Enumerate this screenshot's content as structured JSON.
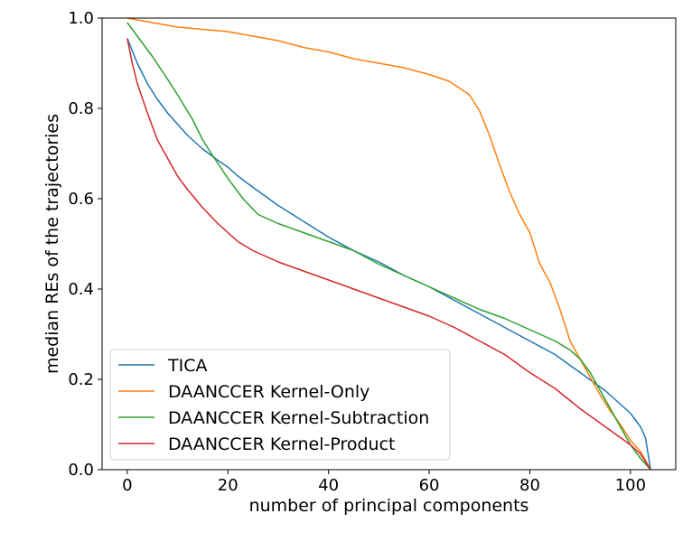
{
  "chart_data": {
    "type": "line",
    "title": "",
    "xlabel": "number of principal components",
    "ylabel": "median REs of the trajectories",
    "xlim": [
      -5,
      109
    ],
    "ylim": [
      0.0,
      1.0
    ],
    "xticks": [
      0,
      20,
      40,
      60,
      80,
      100
    ],
    "xtick_labels": [
      "0",
      "20",
      "40",
      "60",
      "80",
      "100"
    ],
    "yticks": [
      0.0,
      0.2,
      0.4,
      0.6,
      0.8,
      1.0
    ],
    "ytick_labels": [
      "0.0",
      "0.2",
      "0.4",
      "0.6",
      "0.8",
      "1.0"
    ],
    "grid": false,
    "legend_position": "lower-left",
    "series": [
      {
        "name": "TICA",
        "color": "#1f77b4",
        "points": [
          [
            0,
            0.955
          ],
          [
            2,
            0.9
          ],
          [
            4,
            0.855
          ],
          [
            6,
            0.82
          ],
          [
            8,
            0.79
          ],
          [
            10,
            0.765
          ],
          [
            12,
            0.74
          ],
          [
            15,
            0.71
          ],
          [
            18,
            0.685
          ],
          [
            20,
            0.67
          ],
          [
            22,
            0.65
          ],
          [
            25,
            0.625
          ],
          [
            30,
            0.585
          ],
          [
            35,
            0.55
          ],
          [
            40,
            0.515
          ],
          [
            45,
            0.485
          ],
          [
            50,
            0.46
          ],
          [
            55,
            0.43
          ],
          [
            60,
            0.405
          ],
          [
            65,
            0.375
          ],
          [
            70,
            0.345
          ],
          [
            75,
            0.315
          ],
          [
            80,
            0.285
          ],
          [
            85,
            0.255
          ],
          [
            90,
            0.215
          ],
          [
            95,
            0.175
          ],
          [
            98,
            0.145
          ],
          [
            100,
            0.125
          ],
          [
            102,
            0.095
          ],
          [
            103,
            0.07
          ],
          [
            104,
            0.0
          ]
        ]
      },
      {
        "name": "DAANCCER Kernel-Only",
        "color": "#ff7f0e",
        "points": [
          [
            0,
            1.0
          ],
          [
            5,
            0.99
          ],
          [
            10,
            0.98
          ],
          [
            15,
            0.975
          ],
          [
            20,
            0.97
          ],
          [
            25,
            0.96
          ],
          [
            30,
            0.95
          ],
          [
            35,
            0.935
          ],
          [
            40,
            0.925
          ],
          [
            45,
            0.91
          ],
          [
            50,
            0.9
          ],
          [
            55,
            0.89
          ],
          [
            60,
            0.875
          ],
          [
            64,
            0.86
          ],
          [
            66,
            0.845
          ],
          [
            68,
            0.83
          ],
          [
            70,
            0.795
          ],
          [
            72,
            0.74
          ],
          [
            74,
            0.675
          ],
          [
            76,
            0.615
          ],
          [
            78,
            0.565
          ],
          [
            80,
            0.525
          ],
          [
            82,
            0.455
          ],
          [
            84,
            0.415
          ],
          [
            86,
            0.355
          ],
          [
            88,
            0.285
          ],
          [
            90,
            0.245
          ],
          [
            92,
            0.205
          ],
          [
            94,
            0.165
          ],
          [
            96,
            0.13
          ],
          [
            98,
            0.1
          ],
          [
            100,
            0.065
          ],
          [
            102,
            0.04
          ],
          [
            104,
            0.0
          ]
        ]
      },
      {
        "name": "DAANCCER Kernel-Subtraction",
        "color": "#2ca02c",
        "points": [
          [
            0,
            0.99
          ],
          [
            2,
            0.96
          ],
          [
            5,
            0.915
          ],
          [
            8,
            0.865
          ],
          [
            10,
            0.83
          ],
          [
            13,
            0.775
          ],
          [
            15,
            0.73
          ],
          [
            17,
            0.695
          ],
          [
            20,
            0.645
          ],
          [
            23,
            0.6
          ],
          [
            26,
            0.565
          ],
          [
            30,
            0.545
          ],
          [
            35,
            0.525
          ],
          [
            40,
            0.505
          ],
          [
            45,
            0.485
          ],
          [
            50,
            0.455
          ],
          [
            55,
            0.43
          ],
          [
            60,
            0.405
          ],
          [
            65,
            0.38
          ],
          [
            70,
            0.355
          ],
          [
            75,
            0.335
          ],
          [
            80,
            0.31
          ],
          [
            85,
            0.285
          ],
          [
            88,
            0.265
          ],
          [
            90,
            0.245
          ],
          [
            92,
            0.215
          ],
          [
            94,
            0.175
          ],
          [
            96,
            0.135
          ],
          [
            98,
            0.095
          ],
          [
            100,
            0.055
          ],
          [
            102,
            0.025
          ],
          [
            104,
            0.0
          ]
        ]
      },
      {
        "name": "DAANCCER Kernel-Product",
        "color": "#d62728",
        "points": [
          [
            0,
            0.955
          ],
          [
            1,
            0.9
          ],
          [
            2,
            0.855
          ],
          [
            4,
            0.79
          ],
          [
            6,
            0.73
          ],
          [
            8,
            0.69
          ],
          [
            10,
            0.65
          ],
          [
            12,
            0.62
          ],
          [
            15,
            0.58
          ],
          [
            18,
            0.545
          ],
          [
            20,
            0.525
          ],
          [
            22,
            0.505
          ],
          [
            25,
            0.485
          ],
          [
            30,
            0.46
          ],
          [
            35,
            0.44
          ],
          [
            40,
            0.42
          ],
          [
            45,
            0.4
          ],
          [
            50,
            0.38
          ],
          [
            55,
            0.36
          ],
          [
            60,
            0.34
          ],
          [
            65,
            0.315
          ],
          [
            70,
            0.285
          ],
          [
            75,
            0.255
          ],
          [
            80,
            0.215
          ],
          [
            85,
            0.18
          ],
          [
            90,
            0.135
          ],
          [
            95,
            0.095
          ],
          [
            100,
            0.055
          ],
          [
            102,
            0.035
          ],
          [
            104,
            0.0
          ]
        ]
      }
    ]
  }
}
